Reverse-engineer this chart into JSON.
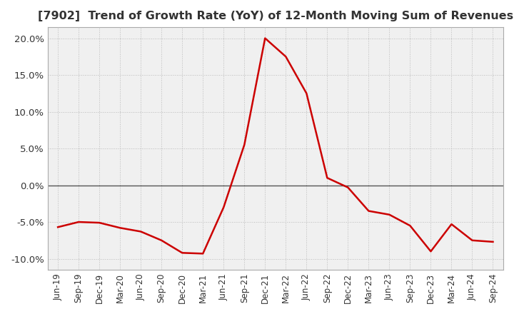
{
  "title": "[7902]  Trend of Growth Rate (YoY) of 12-Month Moving Sum of Revenues",
  "title_fontsize": 11.5,
  "title_color": "#333333",
  "line_color": "#cc0000",
  "line_width": 1.8,
  "background_color": "#ffffff",
  "plot_bg_color": "#f0f0f0",
  "ylim": [
    -0.115,
    0.215
  ],
  "yticks": [
    -0.1,
    -0.05,
    0.0,
    0.05,
    0.1,
    0.15,
    0.2
  ],
  "x_labels": [
    "Jun-19",
    "Sep-19",
    "Dec-19",
    "Mar-20",
    "Jun-20",
    "Sep-20",
    "Dec-20",
    "Mar-21",
    "Jun-21",
    "Sep-21",
    "Dec-21",
    "Mar-22",
    "Jun-22",
    "Sep-22",
    "Dec-22",
    "Mar-23",
    "Jun-23",
    "Sep-23",
    "Dec-23",
    "Mar-24",
    "Jun-24",
    "Sep-24"
  ],
  "data_x": [
    0,
    1,
    2,
    3,
    4,
    5,
    6,
    7,
    8,
    9,
    10,
    11,
    12,
    13,
    14,
    15,
    16,
    17,
    18,
    19,
    20,
    21
  ],
  "data_y": [
    -0.057,
    -0.05,
    -0.051,
    -0.058,
    -0.063,
    -0.075,
    -0.092,
    -0.093,
    -0.03,
    0.055,
    0.2,
    0.175,
    0.125,
    0.01,
    -0.003,
    -0.035,
    -0.04,
    -0.055,
    -0.09,
    -0.053,
    -0.075,
    -0.077
  ],
  "spine_color": "#aaaaaa",
  "grid_color": "#bbbbbb",
  "zero_line_color": "#555555",
  "tick_label_color": "#333333",
  "tick_fontsize": 8.5,
  "ytick_fontsize": 9.5
}
